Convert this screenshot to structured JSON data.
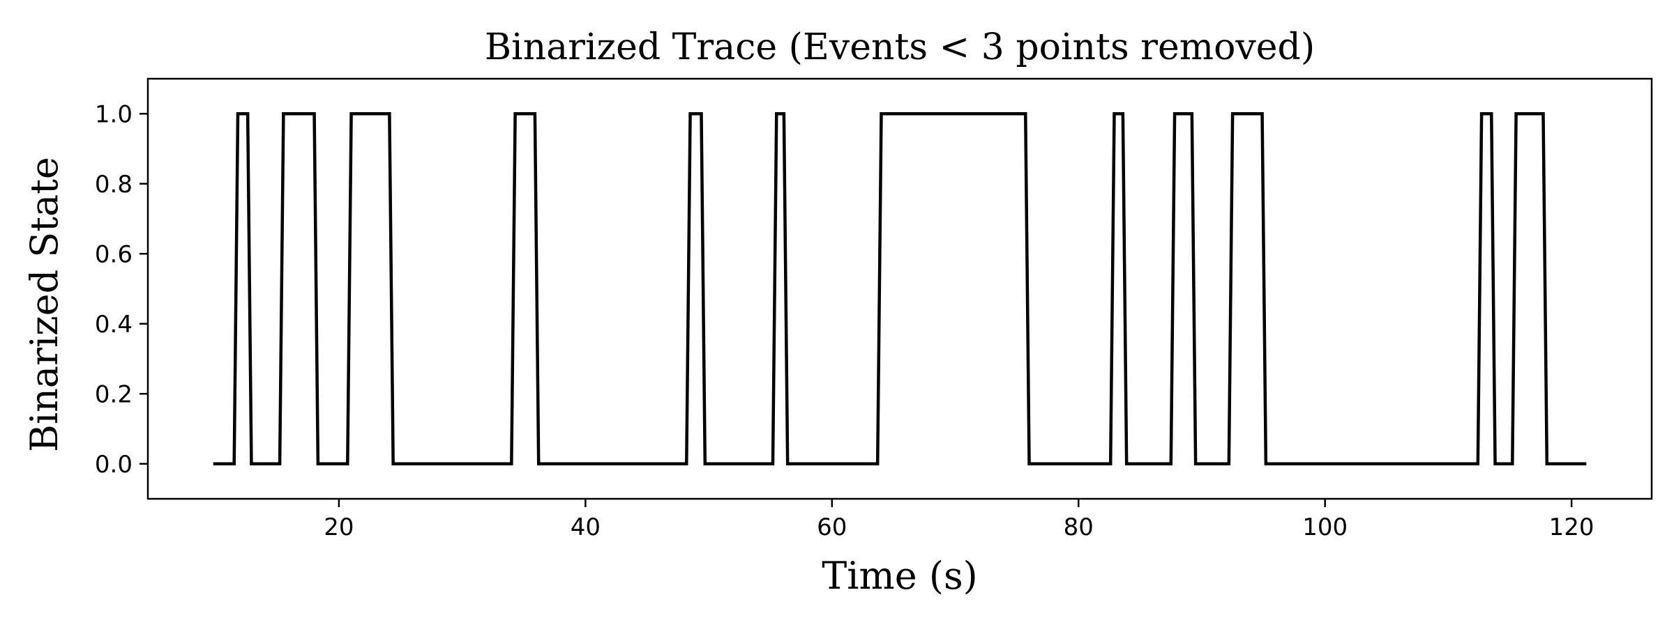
{
  "chart_data": {
    "type": "line",
    "style": "step",
    "title": "Binarized Trace (Events < 3 points removed)",
    "xlabel": "Time (s)",
    "ylabel": "Binarized State",
    "xlim": [
      4.5,
      126.5
    ],
    "ylim": [
      -0.1,
      1.1
    ],
    "xticks": [
      20,
      40,
      60,
      80,
      100,
      120
    ],
    "yticks": [
      0.0,
      0.2,
      0.4,
      0.6,
      0.8,
      1.0
    ],
    "xtick_labels": [
      "20",
      "40",
      "60",
      "80",
      "100",
      "120"
    ],
    "ytick_labels": [
      "0.0",
      "0.2",
      "0.4",
      "0.6",
      "0.8",
      "1.0"
    ],
    "grid": false,
    "line_color": "#000000",
    "series": [
      {
        "name": "Binarized Trace",
        "x": [
          9.8,
          11.5,
          11.8,
          12.6,
          12.9,
          15.2,
          15.5,
          18.0,
          18.3,
          20.7,
          21.0,
          24.1,
          24.4,
          34.0,
          34.3,
          35.9,
          36.2,
          48.2,
          48.5,
          49.4,
          49.7,
          55.2,
          55.5,
          56.1,
          56.4,
          63.7,
          64.0,
          75.7,
          76.0,
          82.6,
          82.9,
          83.6,
          83.9,
          87.5,
          87.8,
          89.2,
          89.5,
          92.2,
          92.5,
          94.9,
          95.2,
          112.4,
          112.7,
          113.5,
          113.8,
          115.2,
          115.5,
          117.7,
          118.0,
          121.2
        ],
        "y": [
          0,
          0,
          1,
          1,
          0,
          0,
          1,
          1,
          0,
          0,
          1,
          1,
          0,
          0,
          1,
          1,
          0,
          0,
          1,
          1,
          0,
          0,
          1,
          1,
          0,
          0,
          1,
          1,
          0,
          0,
          1,
          1,
          0,
          0,
          1,
          1,
          0,
          0,
          1,
          1,
          0,
          0,
          1,
          1,
          0,
          0,
          1,
          1,
          0,
          0
        ]
      }
    ]
  }
}
